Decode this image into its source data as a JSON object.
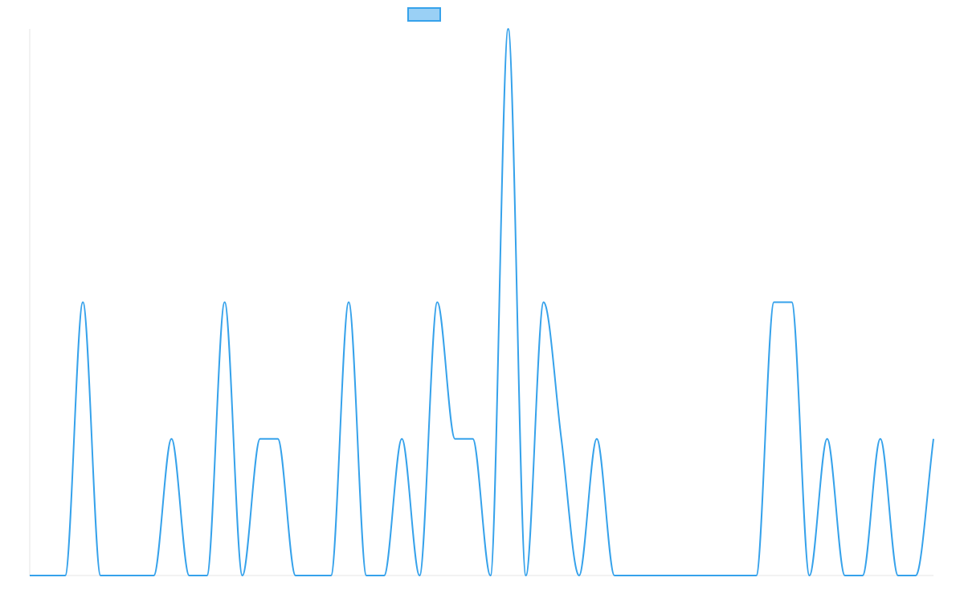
{
  "colors": {
    "line": "#36a2eb",
    "legend_fill": "#9ad0f5",
    "axis": "#e6e6e6"
  },
  "chart_data": {
    "type": "line",
    "title": "",
    "xlabel": "",
    "ylabel": "",
    "legend": {
      "position": "top",
      "entries": [
        ""
      ]
    },
    "grid": false,
    "interpolation": "monotone",
    "xlim": [
      0,
      51
    ],
    "ylim": [
      0,
      4
    ],
    "x": [
      0,
      1,
      2,
      3,
      4,
      5,
      6,
      7,
      8,
      9,
      10,
      11,
      12,
      13,
      14,
      15,
      16,
      17,
      18,
      19,
      20,
      21,
      22,
      23,
      24,
      25,
      26,
      27,
      28,
      29,
      30,
      31,
      32,
      33,
      34,
      35,
      36,
      37,
      38,
      39,
      40,
      41,
      42,
      43,
      44,
      45,
      46,
      47,
      48,
      49,
      50,
      51
    ],
    "series": [
      {
        "values": [
          0,
          0,
          0,
          2,
          0,
          0,
          0,
          0,
          1,
          0,
          0,
          2,
          0,
          1,
          1,
          0,
          0,
          0,
          2,
          0,
          0,
          1,
          0,
          2,
          1,
          1,
          0,
          4,
          0,
          2,
          1,
          0,
          1,
          0,
          0,
          0,
          0,
          0,
          0,
          0,
          0,
          0,
          2,
          2,
          0,
          1,
          0,
          0,
          1,
          0,
          0,
          1
        ]
      }
    ]
  }
}
